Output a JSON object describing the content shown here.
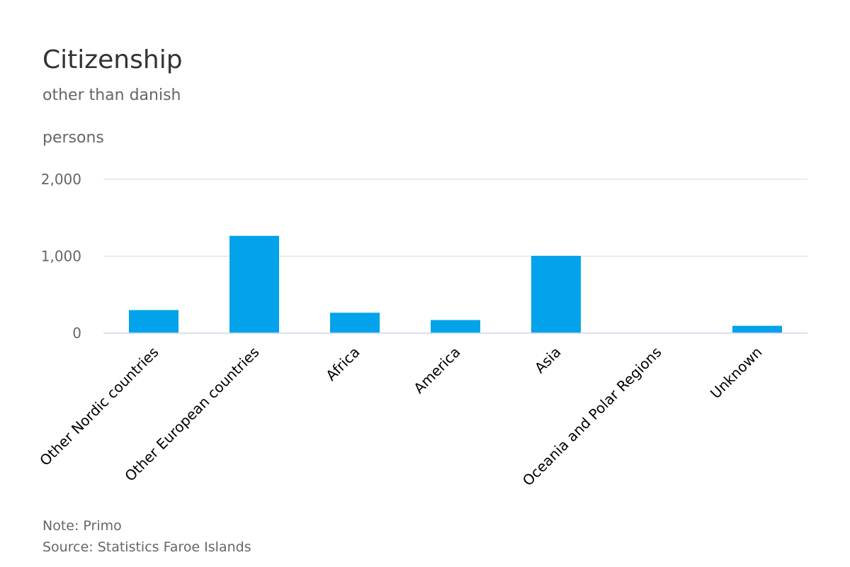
{
  "chart_data": {
    "type": "bar",
    "title": "Citizenship",
    "subtitle": "other than danish",
    "ylabel": "persons",
    "xlabel": "",
    "categories": [
      "Other Nordic countries",
      "Other European countries",
      "Africa",
      "America",
      "Asia",
      "Oceania and Polar Regions",
      "Unknown"
    ],
    "values": [
      300,
      1265,
      265,
      170,
      1005,
      0,
      95
    ],
    "ylim": [
      0,
      2000
    ],
    "yticks": [
      0,
      1000,
      2000
    ],
    "ytick_labels": [
      "0",
      "1,000",
      "2,000"
    ],
    "grid": true,
    "legend": "none",
    "colors": {
      "bar": "#02a3ea",
      "grid": "#e0e4e8",
      "axis": "#ccd6eb"
    }
  },
  "footer": {
    "note": "Note: Primo",
    "source": "Source: Statistics Faroe Islands"
  }
}
